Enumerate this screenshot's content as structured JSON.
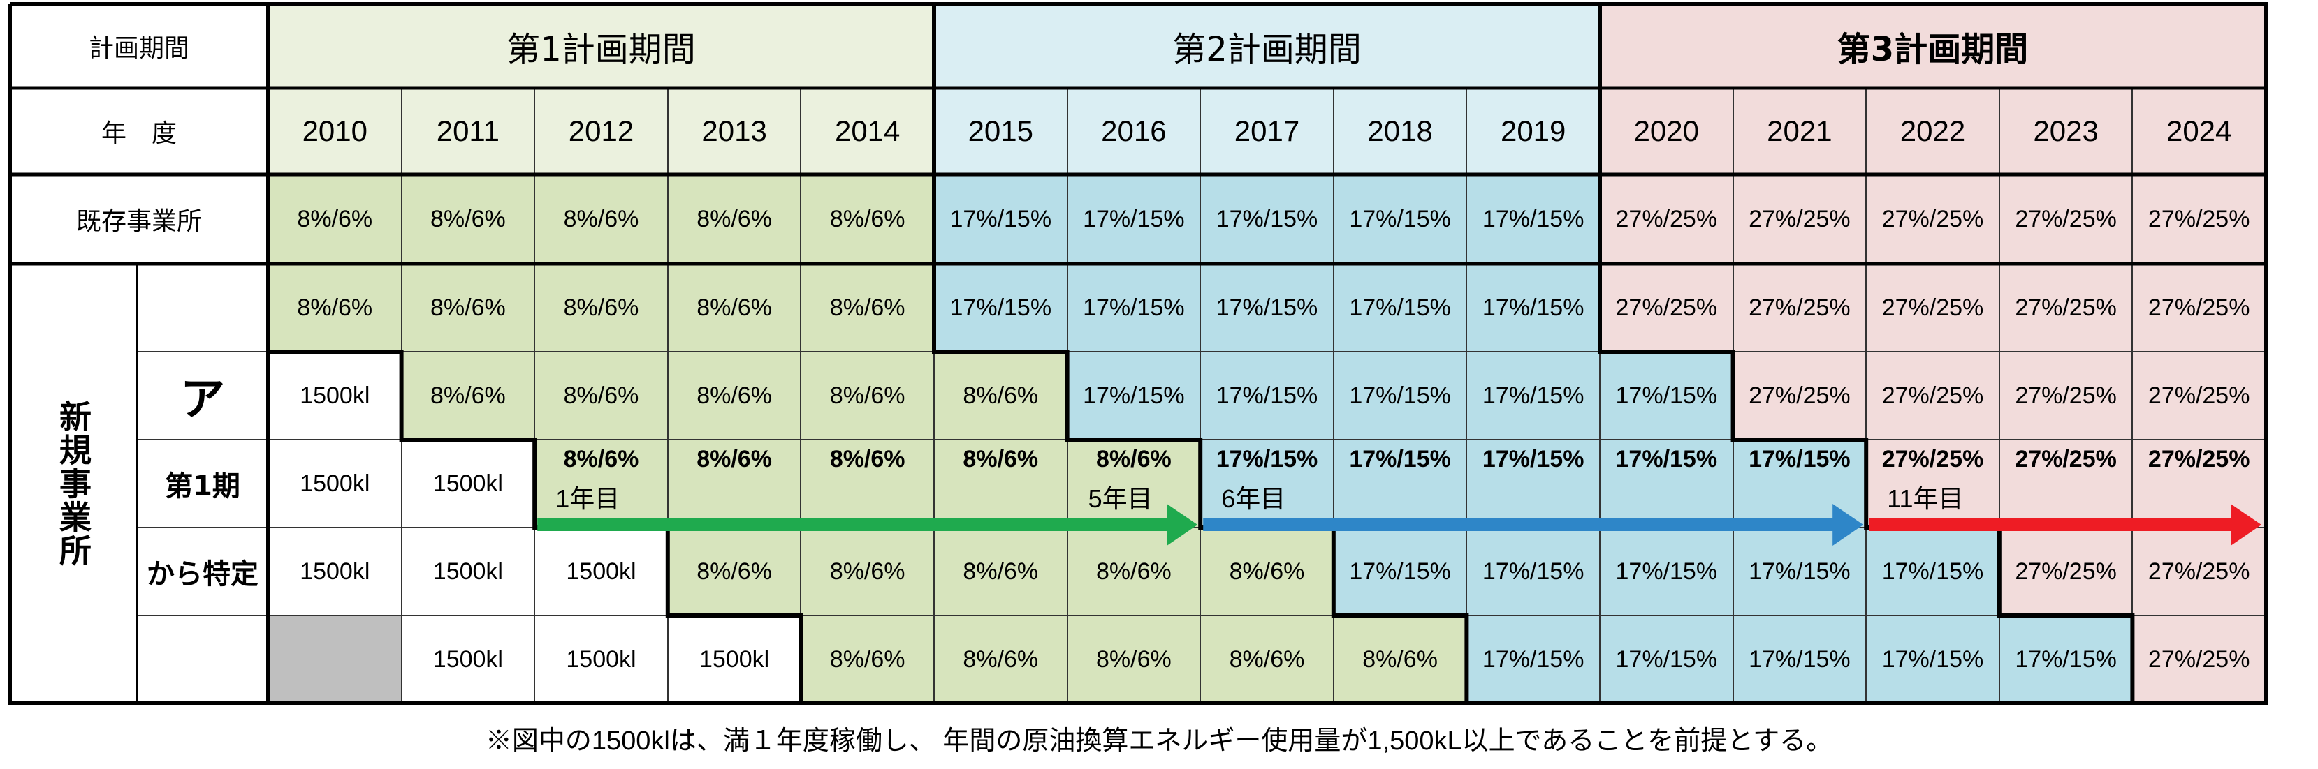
{
  "labels": {
    "period_header": "計画期間",
    "fiscal_year": "年　度",
    "existing": "既存事業所",
    "new_office": "新規事業所",
    "group_a": "ア",
    "first_period": "第1期",
    "from_specified": "から特定"
  },
  "periods": [
    {
      "name": "第1計画期間",
      "color": "#ebf1de",
      "bold": false
    },
    {
      "name": "第2計画期間",
      "color": "#daeef3",
      "bold": false
    },
    {
      "name": "第3計画期間",
      "color": "#f2dcdb",
      "bold": true
    }
  ],
  "years": [
    "2010",
    "2011",
    "2012",
    "2013",
    "2014",
    "2015",
    "2016",
    "2017",
    "2018",
    "2019",
    "2020",
    "2021",
    "2022",
    "2023",
    "2024"
  ],
  "colors": {
    "green": "#d7e4bd",
    "blue": "#b7dee8",
    "pink": "#f2dcdb",
    "white": "#ffffff",
    "gray": "#bfbfbf",
    "arrow_green": "#1faa4e",
    "arrow_blue": "#2e86c8",
    "arrow_red": "#ee1c24"
  },
  "existing_row": [
    "8%/6%",
    "8%/6%",
    "8%/6%",
    "8%/6%",
    "8%/6%",
    "17%/15%",
    "17%/15%",
    "17%/15%",
    "17%/15%",
    "17%/15%",
    "27%/25%",
    "27%/25%",
    "27%/25%",
    "27%/25%",
    "27%/25%"
  ],
  "new_rows": [
    {
      "bold": false,
      "cells": [
        [
          "8%/6%",
          "green"
        ],
        [
          "8%/6%",
          "green"
        ],
        [
          "8%/6%",
          "green"
        ],
        [
          "8%/6%",
          "green"
        ],
        [
          "8%/6%",
          "green"
        ],
        [
          "17%/15%",
          "blue"
        ],
        [
          "17%/15%",
          "blue"
        ],
        [
          "17%/15%",
          "blue"
        ],
        [
          "17%/15%",
          "blue"
        ],
        [
          "17%/15%",
          "blue"
        ],
        [
          "27%/25%",
          "pink"
        ],
        [
          "27%/25%",
          "pink"
        ],
        [
          "27%/25%",
          "pink"
        ],
        [
          "27%/25%",
          "pink"
        ],
        [
          "27%/25%",
          "pink"
        ]
      ]
    },
    {
      "bold": false,
      "cells": [
        [
          "1500kl",
          "white"
        ],
        [
          "8%/6%",
          "green"
        ],
        [
          "8%/6%",
          "green"
        ],
        [
          "8%/6%",
          "green"
        ],
        [
          "8%/6%",
          "green"
        ],
        [
          "8%/6%",
          "green"
        ],
        [
          "17%/15%",
          "blue"
        ],
        [
          "17%/15%",
          "blue"
        ],
        [
          "17%/15%",
          "blue"
        ],
        [
          "17%/15%",
          "blue"
        ],
        [
          "17%/15%",
          "blue"
        ],
        [
          "27%/25%",
          "pink"
        ],
        [
          "27%/25%",
          "pink"
        ],
        [
          "27%/25%",
          "pink"
        ],
        [
          "27%/25%",
          "pink"
        ]
      ]
    },
    {
      "bold": true,
      "cells": [
        [
          "1500kl",
          "white"
        ],
        [
          "1500kl",
          "white"
        ],
        [
          "8%/6%",
          "green"
        ],
        [
          "8%/6%",
          "green"
        ],
        [
          "8%/6%",
          "green"
        ],
        [
          "8%/6%",
          "green"
        ],
        [
          "8%/6%",
          "green"
        ],
        [
          "17%/15%",
          "blue"
        ],
        [
          "17%/15%",
          "blue"
        ],
        [
          "17%/15%",
          "blue"
        ],
        [
          "17%/15%",
          "blue"
        ],
        [
          "17%/15%",
          "blue"
        ],
        [
          "27%/25%",
          "pink"
        ],
        [
          "27%/25%",
          "pink"
        ],
        [
          "27%/25%",
          "pink"
        ]
      ]
    },
    {
      "bold": false,
      "cells": [
        [
          "1500kl",
          "white"
        ],
        [
          "1500kl",
          "white"
        ],
        [
          "1500kl",
          "white"
        ],
        [
          "8%/6%",
          "green"
        ],
        [
          "8%/6%",
          "green"
        ],
        [
          "8%/6%",
          "green"
        ],
        [
          "8%/6%",
          "green"
        ],
        [
          "8%/6%",
          "green"
        ],
        [
          "17%/15%",
          "blue"
        ],
        [
          "17%/15%",
          "blue"
        ],
        [
          "17%/15%",
          "blue"
        ],
        [
          "17%/15%",
          "blue"
        ],
        [
          "17%/15%",
          "blue"
        ],
        [
          "27%/25%",
          "pink"
        ],
        [
          "27%/25%",
          "pink"
        ]
      ]
    },
    {
      "bold": false,
      "cells": [
        [
          "",
          "gray"
        ],
        [
          "1500kl",
          "white"
        ],
        [
          "1500kl",
          "white"
        ],
        [
          "1500kl",
          "white"
        ],
        [
          "8%/6%",
          "green"
        ],
        [
          "8%/6%",
          "green"
        ],
        [
          "8%/6%",
          "green"
        ],
        [
          "8%/6%",
          "green"
        ],
        [
          "8%/6%",
          "green"
        ],
        [
          "17%/15%",
          "blue"
        ],
        [
          "17%/15%",
          "blue"
        ],
        [
          "17%/15%",
          "blue"
        ],
        [
          "17%/15%",
          "blue"
        ],
        [
          "17%/15%",
          "blue"
        ],
        [
          "27%/25%",
          "pink"
        ]
      ]
    }
  ],
  "year_labels": [
    {
      "text": "1年目",
      "col": 2
    },
    {
      "text": "5年目",
      "col": 6
    },
    {
      "text": "6年目",
      "col": 7
    },
    {
      "text": "11年目",
      "col": 12
    }
  ],
  "footnote": "※図中の1500klは、満１年度稼働し、 年間の原油換算エネルギー使用量が1,500kL以上であることを前提とする。"
}
